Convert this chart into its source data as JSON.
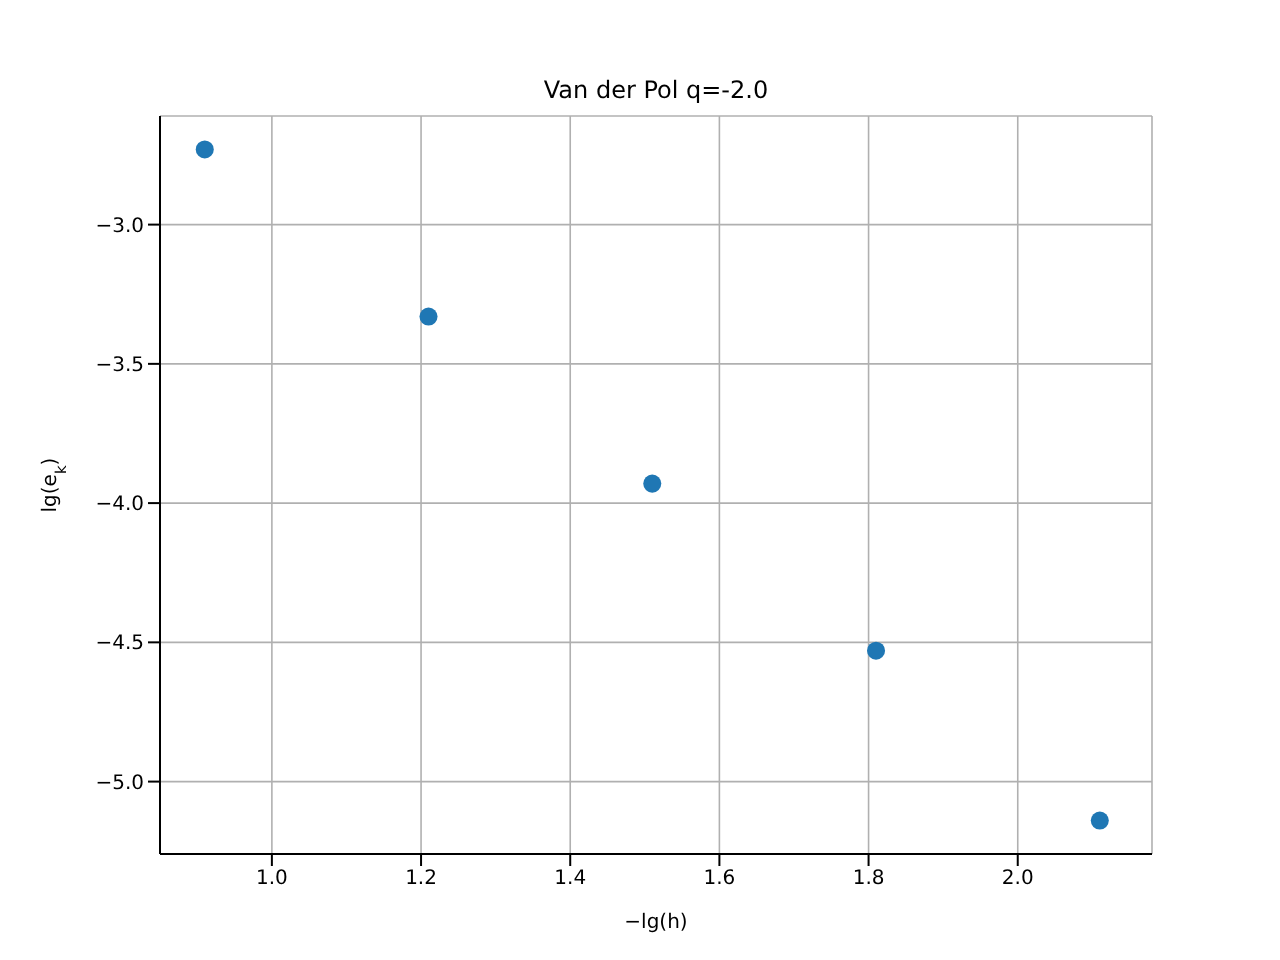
{
  "chart_data": {
    "type": "scatter",
    "title": "Van der Pol q=-2.0",
    "xlabel": "−lg(h)",
    "ylabel": "lg(e$_{k}$)",
    "x": [
      0.91,
      1.21,
      1.51,
      1.81,
      2.11
    ],
    "series": [
      {
        "color": "#1f77b4",
        "values": [
          -2.73,
          -3.33,
          -3.93,
          -4.53,
          -5.14
        ]
      }
    ],
    "xlim": [
      0.85,
      2.18
    ],
    "ylim": [
      -5.26,
      -2.61
    ],
    "xticks": [
      {
        "value": 1.0,
        "label": "1.0"
      },
      {
        "value": 1.2,
        "label": "1.2"
      },
      {
        "value": 1.4,
        "label": "1.4"
      },
      {
        "value": 1.6,
        "label": "1.6"
      },
      {
        "value": 1.8,
        "label": "1.8"
      },
      {
        "value": 2.0,
        "label": "2.0"
      }
    ],
    "yticks": [
      {
        "value": -5.0,
        "label": "−5.0"
      },
      {
        "value": -4.5,
        "label": "−4.5"
      },
      {
        "value": -4.0,
        "label": "−4.0"
      },
      {
        "value": -3.5,
        "label": "−3.5"
      },
      {
        "value": -3.0,
        "label": "−3.0"
      }
    ],
    "grid": true,
    "marker": "circle"
  }
}
